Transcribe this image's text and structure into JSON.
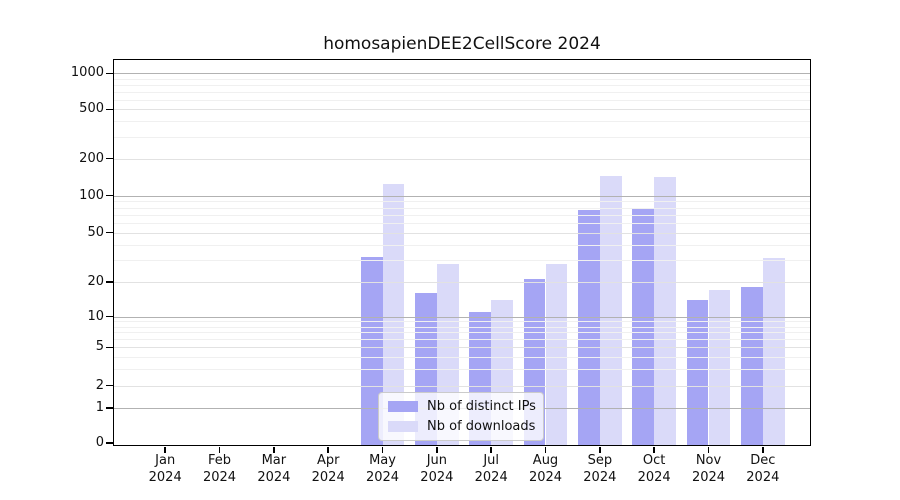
{
  "figure": {
    "title": "homosapienDEE2CellScore 2024"
  },
  "chart_data": {
    "type": "bar",
    "title": "homosapienDEE2CellScore 2024",
    "xlabel": "",
    "ylabel": "",
    "scale_y": "symlog",
    "grid": "on",
    "legend_position": "lower-center",
    "categories": [
      {
        "month": "Jan",
        "year": "2024"
      },
      {
        "month": "Feb",
        "year": "2024"
      },
      {
        "month": "Mar",
        "year": "2024"
      },
      {
        "month": "Apr",
        "year": "2024"
      },
      {
        "month": "May",
        "year": "2024"
      },
      {
        "month": "Jun",
        "year": "2024"
      },
      {
        "month": "Jul",
        "year": "2024"
      },
      {
        "month": "Aug",
        "year": "2024"
      },
      {
        "month": "Sep",
        "year": "2024"
      },
      {
        "month": "Oct",
        "year": "2024"
      },
      {
        "month": "Nov",
        "year": "2024"
      },
      {
        "month": "Dec",
        "year": "2024"
      }
    ],
    "series": [
      {
        "name": "Nb of distinct IPs",
        "color": "#a5a5f4",
        "values": [
          0,
          0,
          0,
          0,
          32,
          16,
          11,
          21,
          77,
          78,
          14,
          18
        ]
      },
      {
        "name": "Nb of downloads",
        "color": "#dadaf9",
        "values": [
          0,
          0,
          0,
          0,
          124,
          28,
          14,
          28,
          144,
          141,
          17,
          31
        ]
      }
    ],
    "y_ticks": [
      0,
      1,
      2,
      5,
      10,
      20,
      50,
      100,
      200,
      500,
      1000
    ],
    "y_major_ticks": [
      1,
      10,
      100,
      1000
    ],
    "ylim": [
      0,
      1200
    ]
  }
}
